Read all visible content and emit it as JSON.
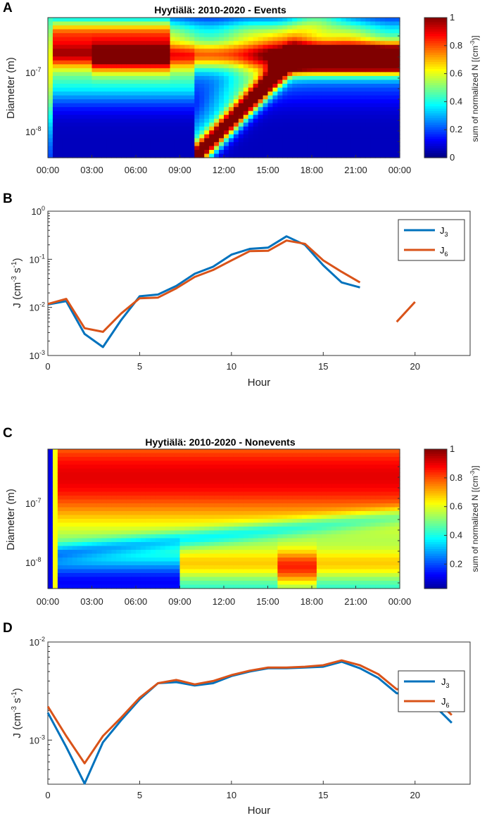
{
  "chart_data": [
    {
      "panel": "A",
      "type": "heatmap",
      "title": "Hyytiälä: 2010-2020 - Events",
      "ylabel": "Diameter (m)",
      "xticks": [
        "00:00",
        "03:00",
        "06:00",
        "09:00",
        "12:00",
        "15:00",
        "18:00",
        "21:00",
        "00:00"
      ],
      "ytick_exponents": [
        "-7",
        "-8"
      ],
      "colorbar": {
        "label": "sum of normalized N [(cm-3)]",
        "ticks": [
          "0",
          "0.2",
          "0.4",
          "0.6",
          "0.8",
          "1"
        ],
        "range": [
          0,
          1
        ]
      },
      "grid": {
        "x": [
          0,
          24
        ],
        "log10_diameter": [
          -8.3,
          -6.5
        ]
      }
    },
    {
      "panel": "B",
      "type": "line",
      "xlabel": "Hour",
      "ylabel": "J (cm-3 s-1)",
      "xlim": [
        0,
        23
      ],
      "ylim_log10": [
        -3,
        0
      ],
      "xticks": [
        "0",
        "5",
        "10",
        "15",
        "20"
      ],
      "yticks": [
        {
          "base": "10",
          "exp": "0"
        },
        {
          "base": "10",
          "exp": "-1"
        },
        {
          "base": "10",
          "exp": "-2"
        },
        {
          "base": "10",
          "exp": "-3"
        }
      ],
      "series": [
        {
          "name": "J3",
          "label": "J",
          "sub": "3",
          "color": "#0072BD",
          "segments": [
            [
              [
                0,
                0.0115
              ],
              [
                1,
                0.0135
              ],
              [
                2,
                0.0028
              ],
              [
                3,
                0.0015
              ],
              [
                4,
                0.0055
              ],
              [
                5,
                0.017
              ],
              [
                6,
                0.0185
              ],
              [
                7,
                0.028
              ],
              [
                8,
                0.05
              ],
              [
                9,
                0.07
              ],
              [
                10,
                0.125
              ],
              [
                11,
                0.165
              ],
              [
                12,
                0.175
              ],
              [
                13,
                0.3
              ],
              [
                14,
                0.2
              ],
              [
                15,
                0.075
              ],
              [
                16,
                0.033
              ],
              [
                17,
                0.026
              ]
            ]
          ]
        },
        {
          "name": "J6",
          "label": "J",
          "sub": "6",
          "color": "#D95319",
          "segments": [
            [
              [
                0,
                0.0118
              ],
              [
                1,
                0.015
              ],
              [
                2,
                0.0037
              ],
              [
                3,
                0.0031
              ],
              [
                4,
                0.0075
              ],
              [
                5,
                0.0155
              ],
              [
                6,
                0.016
              ],
              [
                7,
                0.025
              ],
              [
                8,
                0.043
              ],
              [
                9,
                0.06
              ],
              [
                10,
                0.095
              ],
              [
                11,
                0.148
              ],
              [
                12,
                0.15
              ],
              [
                13,
                0.245
              ],
              [
                14,
                0.21
              ],
              [
                15,
                0.095
              ],
              [
                16,
                0.055
              ],
              [
                17,
                0.033
              ]
            ],
            [
              [
                19,
                0.005
              ],
              [
                20,
                0.013
              ]
            ]
          ]
        }
      ]
    },
    {
      "panel": "C",
      "type": "heatmap",
      "title": "Hyytiälä: 2010-2020 - Nonevents",
      "ylabel": "Diameter (m)",
      "xticks": [
        "00:00",
        "03:00",
        "06:00",
        "09:00",
        "12:00",
        "15:00",
        "18:00",
        "21:00",
        "00:00"
      ],
      "ytick_exponents": [
        "-7",
        "-8"
      ],
      "colorbar": {
        "label": "sum of normalized N [(cm-3)]",
        "ticks": [
          "0.2",
          "0.4",
          "0.6",
          "0.8",
          "1"
        ],
        "range": [
          0.03,
          1
        ]
      },
      "grid": {
        "x": [
          0,
          24
        ],
        "log10_diameter": [
          -8.3,
          -6.5
        ]
      }
    },
    {
      "panel": "D",
      "type": "line",
      "xlabel": "Hour",
      "ylabel": "J (cm-3 s-1)",
      "xlim": [
        0,
        23
      ],
      "ylim_log10": [
        -3.45,
        -2
      ],
      "xticks": [
        "0",
        "5",
        "10",
        "15",
        "20"
      ],
      "yticks": [
        {
          "base": "10",
          "exp": "-2"
        },
        {
          "base": "10",
          "exp": "-3"
        }
      ],
      "series": [
        {
          "name": "J3",
          "label": "J",
          "sub": "3",
          "color": "#0072BD",
          "segments": [
            [
              [
                0,
                0.0019
              ],
              [
                1,
                0.00085
              ],
              [
                2,
                0.00036
              ],
              [
                3,
                0.00095
              ],
              [
                4,
                0.0016
              ],
              [
                5,
                0.0026
              ],
              [
                6,
                0.0038
              ],
              [
                7,
                0.0039
              ],
              [
                8,
                0.0036
              ],
              [
                9,
                0.0038
              ],
              [
                10,
                0.0045
              ],
              [
                11,
                0.005
              ],
              [
                12,
                0.0054
              ],
              [
                13,
                0.0054
              ],
              [
                14,
                0.0055
              ],
              [
                15,
                0.0056
              ],
              [
                16,
                0.0063
              ],
              [
                17,
                0.0054
              ],
              [
                18,
                0.0043
              ],
              [
                19,
                0.003
              ],
              [
                20,
                0.0029
              ],
              [
                21,
                0.0023
              ],
              [
                22,
                0.0015
              ]
            ]
          ]
        },
        {
          "name": "J6",
          "label": "J",
          "sub": "6",
          "color": "#D95319",
          "segments": [
            [
              [
                0,
                0.0022
              ],
              [
                1,
                0.0011
              ],
              [
                2,
                0.00058
              ],
              [
                3,
                0.0011
              ],
              [
                4,
                0.0017
              ],
              [
                5,
                0.0027
              ],
              [
                6,
                0.0038
              ],
              [
                7,
                0.0041
              ],
              [
                8,
                0.0037
              ],
              [
                9,
                0.004
              ],
              [
                10,
                0.0046
              ],
              [
                11,
                0.0051
              ],
              [
                12,
                0.0055
              ],
              [
                13,
                0.0055
              ],
              [
                14,
                0.0056
              ],
              [
                15,
                0.0058
              ],
              [
                16,
                0.0065
              ],
              [
                17,
                0.0058
              ],
              [
                18,
                0.0047
              ],
              [
                19,
                0.0033
              ],
              [
                20,
                0.0034
              ],
              [
                21,
                0.0027
              ],
              [
                22,
                0.0018
              ]
            ]
          ]
        }
      ]
    }
  ]
}
